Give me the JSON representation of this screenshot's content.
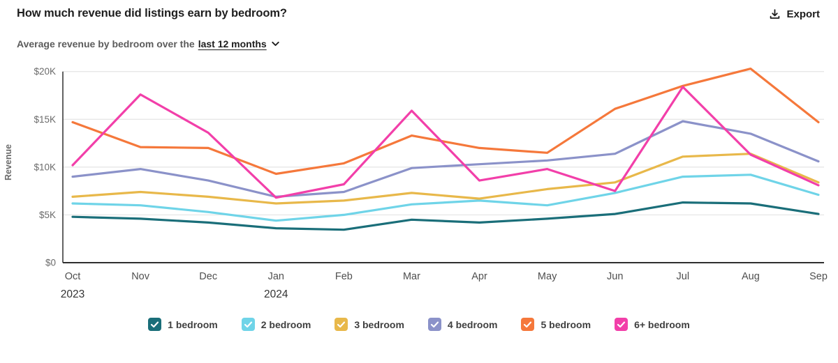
{
  "header": {
    "title": "How much revenue did listings earn by bedroom?",
    "export_label": "Export"
  },
  "subtitle": {
    "prefix": "Average revenue by bedroom over the",
    "range_label": "last 12 months"
  },
  "chart_data": {
    "type": "line",
    "title": "Average revenue by bedroom over the last 12 months",
    "xlabel": "",
    "ylabel": "Revenue",
    "ylim": [
      0,
      21000
    ],
    "grid": true,
    "legend_position": "bottom",
    "categories": [
      "Oct",
      "Nov",
      "Dec",
      "Jan",
      "Feb",
      "Mar",
      "Apr",
      "May",
      "Jun",
      "Jul",
      "Aug",
      "Sep"
    ],
    "year_markers": [
      {
        "index": 0,
        "label": "2023"
      },
      {
        "index": 3,
        "label": "2024"
      }
    ],
    "y_ticks": [
      {
        "value": 0,
        "label": "$0"
      },
      {
        "value": 5000,
        "label": "$5K"
      },
      {
        "value": 10000,
        "label": "$10K"
      },
      {
        "value": 15000,
        "label": "$15K"
      },
      {
        "value": 20000,
        "label": "$20K"
      }
    ],
    "series": [
      {
        "name": "1 bedroom",
        "color": "#1a6e79",
        "values": [
          4800,
          4600,
          4200,
          3600,
          3450,
          4500,
          4200,
          4600,
          5100,
          6300,
          6200,
          5100
        ]
      },
      {
        "name": "2 bedroom",
        "color": "#6fd4e8",
        "values": [
          6200,
          6000,
          5300,
          4400,
          5000,
          6100,
          6500,
          6000,
          7300,
          9000,
          9200,
          7100
        ]
      },
      {
        "name": "3 bedroom",
        "color": "#e8b84a",
        "values": [
          6900,
          7400,
          6900,
          6200,
          6500,
          7300,
          6700,
          7700,
          8400,
          11100,
          11400,
          8400
        ]
      },
      {
        "name": "4 bedroom",
        "color": "#8b92c9",
        "values": [
          9000,
          9800,
          8600,
          6900,
          7400,
          9900,
          10300,
          10700,
          11400,
          14800,
          13500,
          10600
        ]
      },
      {
        "name": "5 bedroom",
        "color": "#f5783b",
        "values": [
          14700,
          12100,
          12000,
          9300,
          10400,
          13300,
          12000,
          11500,
          16100,
          18500,
          20300,
          14700
        ]
      },
      {
        "name": "6+ bedroom",
        "color": "#f23fa9",
        "values": [
          10200,
          17600,
          13600,
          6800,
          8200,
          15900,
          8600,
          9800,
          7500,
          18400,
          11300,
          8100
        ]
      }
    ]
  },
  "colors": {
    "axis": "#2f2f2f",
    "grid": "#e4e4e4",
    "tick_label": "#6b6b6b",
    "month_label": "#4f4f4f",
    "year_label": "#333333"
  }
}
